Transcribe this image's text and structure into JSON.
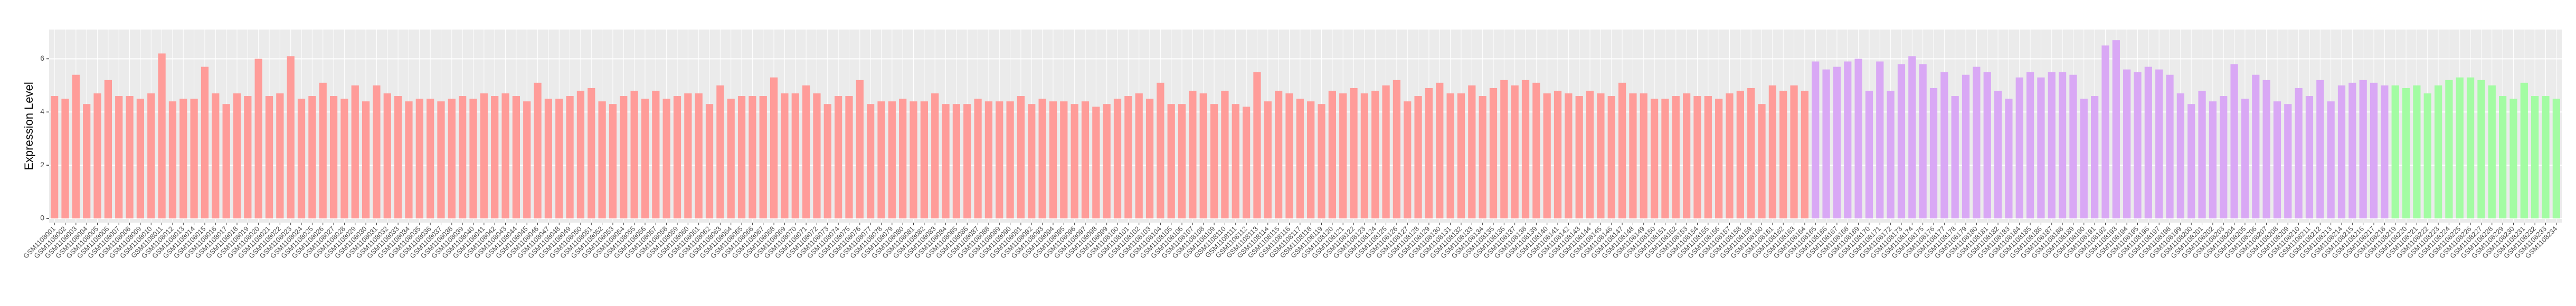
{
  "chart_data": {
    "type": "bar",
    "y_label": "Expression Level",
    "ylim": [
      0,
      7.1
    ],
    "yticks": [
      0,
      2,
      4,
      6
    ],
    "grid": true,
    "series": [
      {
        "color": "#ff9c99",
        "categories": [
          "GSM1108001",
          "GSM1108002",
          "GSM1108003",
          "GSM1108004",
          "GSM1108005",
          "GSM1108006",
          "GSM1108007",
          "GSM1108008",
          "GSM1108009",
          "GSM1108010",
          "GSM1108011",
          "GSM1108012",
          "GSM1108013",
          "GSM1108014",
          "GSM1108015",
          "GSM1108016",
          "GSM1108017",
          "GSM1108018",
          "GSM1108019",
          "GSM1108020",
          "GSM1108021",
          "GSM1108022",
          "GSM1108023",
          "GSM1108024",
          "GSM1108025",
          "GSM1108026",
          "GSM1108027",
          "GSM1108028",
          "GSM1108029",
          "GSM1108030",
          "GSM1108031",
          "GSM1108032",
          "GSM1108033",
          "GSM1108034",
          "GSM1108035",
          "GSM1108036",
          "GSM1108037",
          "GSM1108038",
          "GSM1108039",
          "GSM1108040",
          "GSM1108041",
          "GSM1108042",
          "GSM1108043",
          "GSM1108044",
          "GSM1108045",
          "GSM1108046",
          "GSM1108047",
          "GSM1108048",
          "GSM1108049",
          "GSM1108050",
          "GSM1108051",
          "GSM1108052",
          "GSM1108053",
          "GSM1108054",
          "GSM1108055",
          "GSM1108056",
          "GSM1108057",
          "GSM1108058",
          "GSM1108059",
          "GSM1108060",
          "GSM1108061",
          "GSM1108062",
          "GSM1108063",
          "GSM1108064",
          "GSM1108065",
          "GSM1108066",
          "GSM1108067",
          "GSM1108068",
          "GSM1108069",
          "GSM1108070",
          "GSM1108071",
          "GSM1108072",
          "GSM1108073",
          "GSM1108074",
          "GSM1108075",
          "GSM1108076",
          "GSM1108077",
          "GSM1108078",
          "GSM1108079",
          "GSM1108080",
          "GSM1108081",
          "GSM1108082",
          "GSM1108083",
          "GSM1108084",
          "GSM1108085",
          "GSM1108086",
          "GSM1108087",
          "GSM1108088",
          "GSM1108089",
          "GSM1108090",
          "GSM1108091",
          "GSM1108092",
          "GSM1108093",
          "GSM1108094",
          "GSM1108095",
          "GSM1108096",
          "GSM1108097",
          "GSM1108098",
          "GSM1108099",
          "GSM1108100",
          "GSM1108101",
          "GSM1108102",
          "GSM1108103",
          "GSM1108104",
          "GSM1108105",
          "GSM1108106",
          "GSM1108107",
          "GSM1108108",
          "GSM1108109",
          "GSM1108110",
          "GSM1108111",
          "GSM1108112",
          "GSM1108113",
          "GSM1108114",
          "GSM1108115",
          "GSM1108116",
          "GSM1108117",
          "GSM1108118",
          "GSM1108119",
          "GSM1108120",
          "GSM1108121",
          "GSM1108122",
          "GSM1108123",
          "GSM1108124",
          "GSM1108125",
          "GSM1108126",
          "GSM1108127",
          "GSM1108128",
          "GSM1108129",
          "GSM1108130",
          "GSM1108131",
          "GSM1108132",
          "GSM1108133",
          "GSM1108134",
          "GSM1108135",
          "GSM1108136",
          "GSM1108137",
          "GSM1108138",
          "GSM1108139",
          "GSM1108140",
          "GSM1108141",
          "GSM1108142",
          "GSM1108143",
          "GSM1108144",
          "GSM1108145",
          "GSM1108146",
          "GSM1108147",
          "GSM1108148",
          "GSM1108149",
          "GSM1108150",
          "GSM1108151",
          "GSM1108152",
          "GSM1108153",
          "GSM1108154",
          "GSM1108155",
          "GSM1108156",
          "GSM1108157",
          "GSM1108158",
          "GSM1108159",
          "GSM1108160",
          "GSM1108161",
          "GSM1108162",
          "GSM1108163",
          "GSM1108164"
        ],
        "values": [
          4.6,
          4.5,
          5.4,
          4.3,
          4.7,
          5.2,
          4.6,
          4.6,
          4.5,
          4.7,
          6.2,
          4.4,
          4.5,
          4.5,
          5.7,
          4.7,
          4.3,
          4.7,
          4.6,
          6.0,
          4.6,
          4.7,
          6.1,
          4.5,
          4.6,
          5.1,
          4.6,
          4.5,
          5.0,
          4.4,
          5.0,
          4.7,
          4.6,
          4.4,
          4.5,
          4.5,
          4.4,
          4.5,
          4.6,
          4.5,
          4.7,
          4.6,
          4.7,
          4.6,
          4.4,
          5.1,
          4.5,
          4.5,
          4.6,
          4.8,
          4.9,
          4.4,
          4.3,
          4.6,
          4.8,
          4.5,
          4.8,
          4.5,
          4.6,
          4.7,
          4.7,
          4.3,
          5.0,
          4.5,
          4.6,
          4.6,
          4.6,
          5.3,
          4.7,
          4.7,
          5.0,
          4.7,
          4.3,
          4.6,
          4.6,
          5.2,
          4.3,
          4.4,
          4.4,
          4.5,
          4.4,
          4.4,
          4.7,
          4.3,
          4.3,
          4.3,
          4.5,
          4.4,
          4.4,
          4.4,
          4.6,
          4.3,
          4.5,
          4.4,
          4.4,
          4.3,
          4.4,
          4.2,
          4.3,
          4.5,
          4.6,
          4.7,
          4.5,
          5.1,
          4.3,
          4.3,
          4.8,
          4.7,
          4.3,
          4.8,
          4.3,
          4.2,
          5.5,
          4.4,
          4.8,
          4.7,
          4.5,
          4.4,
          4.3,
          4.8,
          4.7,
          4.9,
          4.7,
          4.8,
          5.0,
          5.2,
          4.4,
          4.6,
          4.9,
          5.1,
          4.7,
          4.7,
          5.0,
          4.6,
          4.9,
          5.2,
          5.0,
          5.2,
          5.1,
          4.7,
          4.8,
          4.7,
          4.6,
          4.8,
          4.7,
          4.6,
          5.1,
          4.7,
          4.7,
          4.5,
          4.5,
          4.6,
          4.7,
          4.6,
          4.6,
          4.5,
          4.7,
          4.8,
          4.9,
          4.3,
          5.0,
          4.8,
          5.0,
          4.8
        ]
      },
      {
        "color": "#d9a8f5",
        "categories": [
          "GSM1108165",
          "GSM1108166",
          "GSM1108167",
          "GSM1108168",
          "GSM1108169",
          "GSM1108170",
          "GSM1108171",
          "GSM1108172",
          "GSM1108173",
          "GSM1108174",
          "GSM1108175",
          "GSM1108176",
          "GSM1108177",
          "GSM1108178",
          "GSM1108179",
          "GSM1108180",
          "GSM1108181",
          "GSM1108182",
          "GSM1108183",
          "GSM1108184",
          "GSM1108185",
          "GSM1108186",
          "GSM1108187",
          "GSM1108188",
          "GSM1108189",
          "GSM1108190",
          "GSM1108191",
          "GSM1108192",
          "GSM1108193",
          "GSM1108194",
          "GSM1108195",
          "GSM1108196",
          "GSM1108197",
          "GSM1108198",
          "GSM1108199",
          "GSM1108200",
          "GSM1108201",
          "GSM1108202",
          "GSM1108203",
          "GSM1108204",
          "GSM1108205",
          "GSM1108206",
          "GSM1108207",
          "GSM1108208",
          "GSM1108209",
          "GSM1108210",
          "GSM1108211",
          "GSM1108212",
          "GSM1108213",
          "GSM1108214",
          "GSM1108215",
          "GSM1108216",
          "GSM1108217",
          "GSM1108218"
        ],
        "values": [
          5.9,
          5.6,
          5.7,
          5.9,
          6.0,
          4.8,
          5.9,
          4.8,
          5.8,
          6.1,
          5.8,
          4.9,
          5.5,
          4.6,
          5.4,
          5.7,
          5.5,
          4.8,
          4.5,
          5.3,
          5.5,
          5.3,
          5.5,
          5.5,
          5.4,
          4.5,
          4.6,
          6.5,
          6.7,
          5.6,
          5.5,
          5.7,
          5.6,
          5.4,
          4.7,
          4.3,
          4.8,
          4.4,
          4.6,
          5.8,
          4.5,
          5.4,
          5.2,
          4.4,
          4.3,
          4.9,
          4.6,
          5.2,
          4.4,
          5.0,
          5.1,
          5.2,
          5.1,
          5.0
        ]
      },
      {
        "color": "#a3fca3",
        "categories": [
          "GSM1108219",
          "GSM1108220",
          "GSM1108221",
          "GSM1108222",
          "GSM1108223",
          "GSM1108224",
          "GSM1108225",
          "GSM1108226",
          "GSM1108227",
          "GSM1108228",
          "GSM1108229",
          "GSM1108230",
          "GSM1108231",
          "GSM1108232",
          "GSM1108233",
          "GSM1108234"
        ],
        "values": [
          5.0,
          4.9,
          5.0,
          4.7,
          5.0,
          5.2,
          5.3,
          5.3,
          5.2,
          5.0,
          4.6,
          4.5,
          5.1,
          4.6,
          4.6,
          4.5
        ]
      }
    ]
  }
}
